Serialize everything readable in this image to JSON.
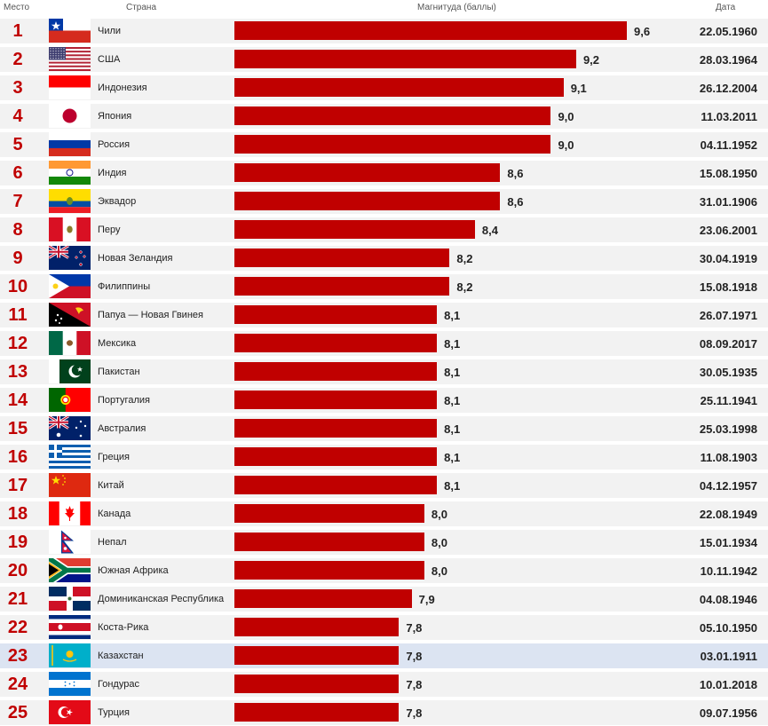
{
  "headers": {
    "rank": "Место",
    "country": "Страна",
    "magnitude": "Магнитуда (баллы)",
    "date": "Дата"
  },
  "colors": {
    "bar": "#c00000",
    "rank": "#c00000",
    "stripe": "#f2f2f2",
    "highlight": "#dce4f2"
  },
  "highlight_rank": 23,
  "chart_data": {
    "type": "bar",
    "orientation": "horizontal",
    "xlim": [
      6.5,
      9.6
    ],
    "rows": [
      {
        "rank": "1",
        "country": "Чили",
        "flag": "chile-flag",
        "value": 9.6,
        "label": "9,6",
        "date": "22.05.1960"
      },
      {
        "rank": "2",
        "country": "США",
        "flag": "usa-flag",
        "value": 9.2,
        "label": "9,2",
        "date": "28.03.1964"
      },
      {
        "rank": "3",
        "country": "Индонезия",
        "flag": "indonesia-flag",
        "value": 9.1,
        "label": "9,1",
        "date": "26.12.2004"
      },
      {
        "rank": "4",
        "country": "Япония",
        "flag": "japan-flag",
        "value": 9.0,
        "label": "9,0",
        "date": "11.03.2011"
      },
      {
        "rank": "5",
        "country": "Россия",
        "flag": "russia-flag",
        "value": 9.0,
        "label": "9,0",
        "date": "04.11.1952"
      },
      {
        "rank": "6",
        "country": "Индия",
        "flag": "india-flag",
        "value": 8.6,
        "label": "8,6",
        "date": "15.08.1950"
      },
      {
        "rank": "7",
        "country": "Эквадор",
        "flag": "ecuador-flag",
        "value": 8.6,
        "label": "8,6",
        "date": "31.01.1906"
      },
      {
        "rank": "8",
        "country": "Перу",
        "flag": "peru-flag",
        "value": 8.4,
        "label": "8,4",
        "date": "23.06.2001"
      },
      {
        "rank": "9",
        "country": "Новая Зеландия",
        "flag": "new-zealand-flag",
        "value": 8.2,
        "label": "8,2",
        "date": "30.04.1919"
      },
      {
        "rank": "10",
        "country": "Филиппины",
        "flag": "philippines-flag",
        "value": 8.2,
        "label": "8,2",
        "date": "15.08.1918"
      },
      {
        "rank": "11",
        "country": "Папуа — Новая Гвинея",
        "flag": "papua-new-guinea-flag",
        "value": 8.1,
        "label": "8,1",
        "date": "26.07.1971"
      },
      {
        "rank": "12",
        "country": "Мексика",
        "flag": "mexico-flag",
        "value": 8.1,
        "label": "8,1",
        "date": "08.09.2017"
      },
      {
        "rank": "13",
        "country": "Пакистан",
        "flag": "pakistan-flag",
        "value": 8.1,
        "label": "8,1",
        "date": "30.05.1935"
      },
      {
        "rank": "14",
        "country": "Португалия",
        "flag": "portugal-flag",
        "value": 8.1,
        "label": "8,1",
        "date": "25.11.1941"
      },
      {
        "rank": "15",
        "country": "Австралия",
        "flag": "australia-flag",
        "value": 8.1,
        "label": "8,1",
        "date": "25.03.1998"
      },
      {
        "rank": "16",
        "country": "Греция",
        "flag": "greece-flag",
        "value": 8.1,
        "label": "8,1",
        "date": "11.08.1903"
      },
      {
        "rank": "17",
        "country": "Китай",
        "flag": "china-flag",
        "value": 8.1,
        "label": "8,1",
        "date": "04.12.1957"
      },
      {
        "rank": "18",
        "country": "Канада",
        "flag": "canada-flag",
        "value": 8.0,
        "label": "8,0",
        "date": "22.08.1949"
      },
      {
        "rank": "19",
        "country": "Непал",
        "flag": "nepal-flag",
        "value": 8.0,
        "label": "8,0",
        "date": "15.01.1934"
      },
      {
        "rank": "20",
        "country": "Южная Африка",
        "flag": "south-africa-flag",
        "value": 8.0,
        "label": "8,0",
        "date": "10.11.1942"
      },
      {
        "rank": "21",
        "country": "Доминиканская Республика",
        "flag": "dominican-republic-flag",
        "value": 7.9,
        "label": "7,9",
        "date": "04.08.1946"
      },
      {
        "rank": "22",
        "country": "Коста-Рика",
        "flag": "costa-rica-flag",
        "value": 7.8,
        "label": "7,8",
        "date": "05.10.1950"
      },
      {
        "rank": "23",
        "country": "Казахстан",
        "flag": "kazakhstan-flag",
        "value": 7.8,
        "label": "7,8",
        "date": "03.01.1911"
      },
      {
        "rank": "24",
        "country": "Гондурас",
        "flag": "honduras-flag",
        "value": 7.8,
        "label": "7,8",
        "date": "10.01.2018"
      },
      {
        "rank": "25",
        "country": "Турция",
        "flag": "turkey-flag",
        "value": 7.8,
        "label": "7,8",
        "date": "09.07.1956"
      }
    ]
  }
}
